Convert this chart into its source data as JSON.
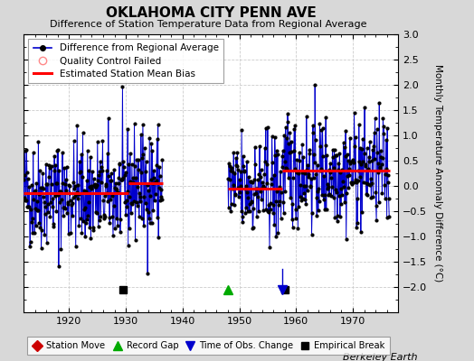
{
  "title": "OKLAHOMA CITY PENN AVE",
  "subtitle": "Difference of Station Temperature Data from Regional Average",
  "ylabel": "Monthly Temperature Anomaly Difference (°C)",
  "credit": "Berkeley Earth",
  "ylim": [
    -2.5,
    3.0
  ],
  "yticks": [
    -2,
    -1.5,
    -1,
    -0.5,
    0,
    0.5,
    1,
    1.5,
    2,
    2.5,
    3
  ],
  "xlim": [
    1912,
    1978
  ],
  "xticks": [
    1920,
    1930,
    1940,
    1950,
    1960,
    1970
  ],
  "bg_color": "#d8d8d8",
  "plot_bg_color": "#ffffff",
  "line_color": "#0000cc",
  "dot_color": "#000000",
  "bias_color": "#ff0000",
  "segments": [
    {
      "x_start": 1912.0,
      "x_end": 1930.5,
      "bias": -0.15
    },
    {
      "x_start": 1930.5,
      "x_end": 1936.5,
      "bias": 0.05
    },
    {
      "x_start": 1948.0,
      "x_end": 1957.5,
      "bias": -0.05
    },
    {
      "x_start": 1957.5,
      "x_end": 1976.5,
      "bias": 0.3
    }
  ],
  "empirical_breaks": [
    1929.5,
    1958.0
  ],
  "record_gap_x": [
    1948.0
  ],
  "time_of_obs_change_x": [
    1957.5
  ],
  "marker_y": -2.05,
  "seed": 42
}
